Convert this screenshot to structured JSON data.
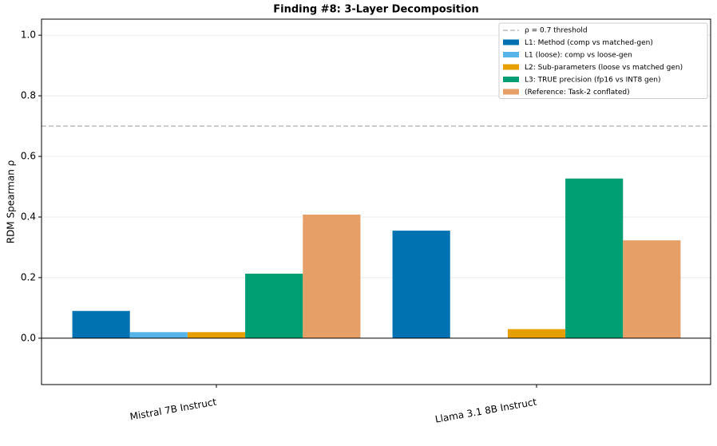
{
  "chart_data": {
    "type": "bar",
    "title": "Finding #8: 3-Layer Decomposition",
    "y_label": "RDM Spearman ρ",
    "categories": [
      "Mistral 7B Instruct",
      "Llama 3.1 8B Instruct"
    ],
    "series": [
      {
        "name": "L1: Method (comp vs matched-gen)",
        "color": "#0072b2",
        "values": [
          0.09,
          0.355
        ]
      },
      {
        "name": "L1 (loose): comp vs loose-gen",
        "color": "#56b4e9",
        "values": [
          0.02,
          null
        ]
      },
      {
        "name": "L2: Sub-parameters (loose vs matched gen)",
        "color": "#e69f00",
        "values": [
          0.02,
          0.03
        ]
      },
      {
        "name": "L3: TRUE precision (fp16 vs INT8 gen)",
        "color": "#009e73",
        "values": [
          0.213,
          0.527
        ]
      },
      {
        "name": "(Reference: Task-2 conflated)",
        "color": "#e69f66",
        "values": [
          0.408,
          0.323
        ]
      }
    ],
    "threshold": {
      "value": 0.7,
      "label": "ρ = 0.7 threshold",
      "color": "#bbbbbb"
    },
    "ylim": [
      -0.153,
      1.053
    ],
    "yticks": [
      {
        "value": 0,
        "label": "0.0"
      },
      {
        "value": 0.2,
        "label": "0.2"
      },
      {
        "value": 0.4,
        "label": "0.4"
      },
      {
        "value": 0.6,
        "label": "0.6"
      },
      {
        "value": 0.8,
        "label": "0.8"
      },
      {
        "value": 1,
        "label": "1.0"
      }
    ],
    "grid": true,
    "legend": "upper-right"
  }
}
